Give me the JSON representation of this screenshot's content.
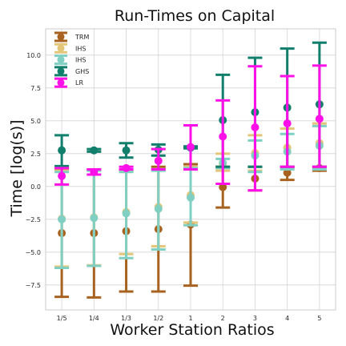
{
  "chart_data": {
    "type": "errorbar",
    "title": "Run-Times on Capital",
    "xlabel": "Worker Station Ratios",
    "ylabel": "Time [log(s)]",
    "categories": [
      "1/5",
      "1/4",
      "1/3",
      "1/2",
      "1",
      "2",
      "3",
      "4",
      "5"
    ],
    "ylim": [
      -9.4,
      12.0
    ],
    "yticks": [
      -7.5,
      -5.0,
      -2.5,
      0.0,
      2.5,
      5.0,
      7.5,
      10.0
    ],
    "ytick_labels": [
      "−7.5",
      "−5.0",
      "−2.5",
      "0.0",
      "2.5",
      "5.0",
      "7.5",
      "10.0"
    ],
    "grid": true,
    "legend_position": "top-left",
    "series": [
      {
        "name": "TRM",
        "color": "#a8621f",
        "mean": [
          -3.55,
          -3.55,
          -3.4,
          -3.25,
          -2.9,
          -0.05,
          0.6,
          1.05,
          1.4
        ],
        "lower": [
          -8.4,
          -8.45,
          -8.0,
          -8.0,
          -7.55,
          -1.6,
          -0.3,
          0.5,
          1.2
        ],
        "upper": [
          1.3,
          1.3,
          1.2,
          1.5,
          1.7,
          1.5,
          1.5,
          1.5,
          1.5
        ]
      },
      {
        "name": "IHS",
        "color": "#e3c67a",
        "mean": [
          -2.45,
          -2.35,
          -1.95,
          -1.55,
          -0.65,
          1.65,
          2.55,
          2.95,
          3.3
        ],
        "lower": [
          -6.1,
          -6.0,
          -5.15,
          -4.55,
          -2.75,
          1.2,
          1.2,
          1.5,
          1.5
        ],
        "upper": [
          1.2,
          1.3,
          1.2,
          1.3,
          1.5,
          2.5,
          3.9,
          4.4,
          4.8
        ]
      },
      {
        "name": "IHS",
        "color": "#7fd0c3",
        "mean": [
          -2.5,
          -2.4,
          -2.05,
          -1.7,
          -0.85,
          1.8,
          2.35,
          2.65,
          3.1
        ],
        "lower": [
          -6.2,
          -6.05,
          -5.45,
          -4.8,
          -2.95,
          1.4,
          1.1,
          1.3,
          1.3
        ],
        "upper": [
          1.1,
          1.2,
          1.1,
          1.2,
          1.4,
          2.1,
          3.5,
          4.0,
          4.6
        ]
      },
      {
        "name": "GHS",
        "color": "#117f6c",
        "mean": [
          2.75,
          2.75,
          2.75,
          2.8,
          2.95,
          5.05,
          5.65,
          6.0,
          6.25
        ],
        "lower": [
          1.55,
          2.65,
          2.2,
          2.35,
          2.9,
          1.5,
          1.5,
          1.5,
          1.5
        ],
        "upper": [
          3.9,
          2.85,
          3.3,
          3.2,
          3.05,
          8.5,
          9.8,
          10.5,
          10.95
        ]
      },
      {
        "name": "LR",
        "color": "#ff10e8",
        "mean": [
          0.8,
          1.1,
          1.4,
          1.95,
          3.0,
          3.8,
          4.5,
          4.8,
          5.15
        ],
        "lower": [
          0.15,
          0.9,
          1.3,
          1.3,
          1.3,
          0.2,
          -0.3,
          1.5,
          1.5
        ],
        "upper": [
          1.4,
          1.3,
          1.5,
          2.85,
          4.65,
          6.55,
          9.15,
          8.4,
          9.2
        ]
      }
    ]
  }
}
